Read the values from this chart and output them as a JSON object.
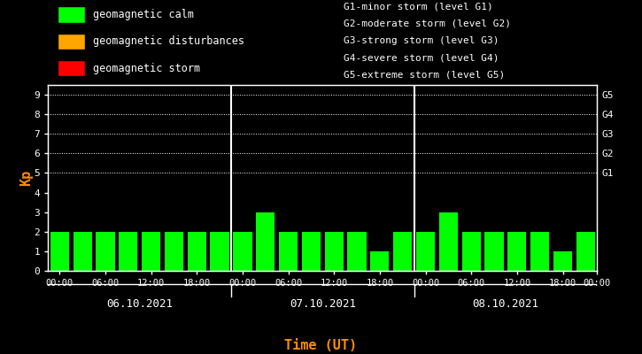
{
  "background_color": "#000000",
  "bar_color": "#00ff00",
  "text_color": "#ffffff",
  "ylabel_color": "#ff8c00",
  "xlabel_color": "#ff8c00",
  "ylabel": "Kp",
  "xlabel": "Time (UT)",
  "ylim": [
    0,
    9.5
  ],
  "yticks": [
    0,
    1,
    2,
    3,
    4,
    5,
    6,
    7,
    8,
    9
  ],
  "right_labels": [
    "G5",
    "G4",
    "G3",
    "G2",
    "G1"
  ],
  "right_label_yvals": [
    9,
    8,
    7,
    6,
    5
  ],
  "grid_yvals": [
    5,
    6,
    7,
    8,
    9
  ],
  "kp_day1": [
    2,
    2,
    2,
    2,
    2,
    2,
    2,
    2
  ],
  "kp_day2": [
    2,
    3,
    2,
    2,
    2,
    2,
    1,
    2
  ],
  "kp_day3": [
    2,
    3,
    2,
    2,
    2,
    2,
    1,
    2
  ],
  "day_labels": [
    "06.10.2021",
    "07.10.2021",
    "08.10.2021"
  ],
  "xtick_labels": [
    "00:00",
    "06:00",
    "12:00",
    "18:00",
    "00:00",
    "06:00",
    "12:00",
    "18:00",
    "00:00",
    "06:00",
    "12:00",
    "18:00",
    "00:00"
  ],
  "legend_left": [
    {
      "label": "geomagnetic calm",
      "color": "#00ff00"
    },
    {
      "label": "geomagnetic disturbances",
      "color": "#ffa500"
    },
    {
      "label": "geomagnetic storm",
      "color": "#ff0000"
    }
  ],
  "legend_right": [
    "G1-minor storm (level G1)",
    "G2-moderate storm (level G2)",
    "G3-strong storm (level G3)",
    "G4-severe storm (level G4)",
    "G5-extreme storm (level G5)"
  ]
}
